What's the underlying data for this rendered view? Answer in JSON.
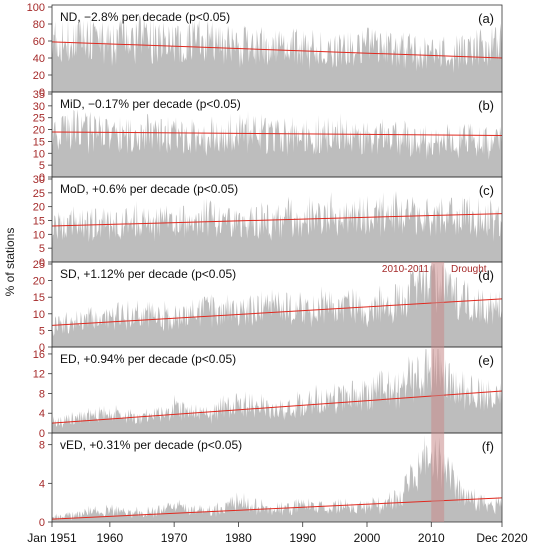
{
  "ylabel": "% of stations",
  "x_start_label": "Jan 1951",
  "x_end_label": "Dec 2020",
  "x_tick_labels": [
    "1960",
    "1970",
    "1980",
    "1990",
    "2000",
    "2010"
  ],
  "drought_label_left": "2010-2011",
  "drought_label_right": "Drought",
  "colors": {
    "bars": "#bdbdbd",
    "trend": "#e0281e",
    "ytick": "#a52a2a",
    "drought": "#c98a8a"
  },
  "chart_data": [
    {
      "type": "area",
      "label": "ND, −2.8% per decade (p<0.05)",
      "panel": "(a)",
      "ylim": [
        0,
        100
      ],
      "yticks": [
        0,
        20,
        40,
        60,
        80,
        100
      ],
      "x": [
        1951,
        1955,
        1960,
        1965,
        1970,
        1975,
        1980,
        1985,
        1990,
        1995,
        2000,
        2005,
        2010,
        2015,
        2020
      ],
      "values": [
        60,
        63,
        58,
        62,
        56,
        60,
        55,
        52,
        53,
        50,
        54,
        48,
        45,
        47,
        55
      ],
      "trend": [
        59,
        40
      ]
    },
    {
      "type": "area",
      "label": "MiD, −0.17% per decade (p<0.05)",
      "panel": "(b)",
      "ylim": [
        0,
        35
      ],
      "yticks": [
        0,
        5,
        10,
        15,
        20,
        25,
        30,
        35
      ],
      "x": [
        1951,
        1955,
        1960,
        1965,
        1970,
        1975,
        1980,
        1985,
        1990,
        1995,
        2000,
        2005,
        2010,
        2015,
        2020
      ],
      "values": [
        18,
        20,
        17,
        19,
        18,
        17,
        19,
        18,
        17,
        18,
        16,
        17,
        14,
        16,
        15
      ],
      "trend": [
        19,
        17.5
      ]
    },
    {
      "type": "area",
      "label": "MoD, +0.6% per decade (p<0.05)",
      "panel": "(c)",
      "ylim": [
        0,
        30
      ],
      "yticks": [
        0,
        5,
        10,
        15,
        20,
        25,
        30
      ],
      "x": [
        1951,
        1955,
        1960,
        1965,
        1970,
        1975,
        1980,
        1985,
        1990,
        1995,
        2000,
        2005,
        2010,
        2015,
        2020
      ],
      "values": [
        12,
        14,
        13,
        15,
        13,
        16,
        14,
        15,
        16,
        17,
        16,
        18,
        16,
        17,
        15
      ],
      "trend": [
        13,
        17.5
      ]
    },
    {
      "type": "area",
      "label": "SD, +1.12% per decade (p<0.05)",
      "panel": "(d)",
      "ylim": [
        0,
        25
      ],
      "yticks": [
        0,
        5,
        10,
        15,
        20,
        25
      ],
      "x": [
        1951,
        1955,
        1960,
        1965,
        1970,
        1975,
        1980,
        1985,
        1990,
        1995,
        2000,
        2005,
        2010,
        2015,
        2020
      ],
      "values": [
        6,
        8,
        9,
        10,
        9,
        11,
        10,
        12,
        11,
        13,
        12,
        14,
        20,
        14,
        12
      ],
      "trend": [
        6.5,
        14.5
      ]
    },
    {
      "type": "area",
      "label": "ED, +0.94% per decade (p<0.05)",
      "panel": "(e)",
      "ylim": [
        0,
        17
      ],
      "yticks": [
        0,
        4,
        8,
        12,
        16
      ],
      "x": [
        1951,
        1955,
        1960,
        1965,
        1970,
        1975,
        1980,
        1985,
        1990,
        1995,
        2000,
        2005,
        2010,
        2015,
        2020
      ],
      "values": [
        2,
        3,
        4,
        3,
        5,
        4,
        6,
        5,
        6,
        7,
        8,
        9,
        14,
        9,
        7
      ],
      "trend": [
        2.0,
        8.5
      ]
    },
    {
      "type": "area",
      "label": "vED, +0.31% per decade (p<0.05)",
      "panel": "(f)",
      "ylim": [
        0,
        9
      ],
      "yticks": [
        0,
        4,
        8
      ],
      "x": [
        1951,
        1955,
        1960,
        1965,
        1970,
        1975,
        1980,
        1985,
        1990,
        1995,
        2000,
        2005,
        2010,
        2015,
        2020
      ],
      "values": [
        0.3,
        0.8,
        1.2,
        1.0,
        1.5,
        1.1,
        2.0,
        1.3,
        1.6,
        1.4,
        1.8,
        2.2,
        7.5,
        2.6,
        1.8
      ],
      "trend": [
        0.3,
        2.5
      ]
    }
  ]
}
